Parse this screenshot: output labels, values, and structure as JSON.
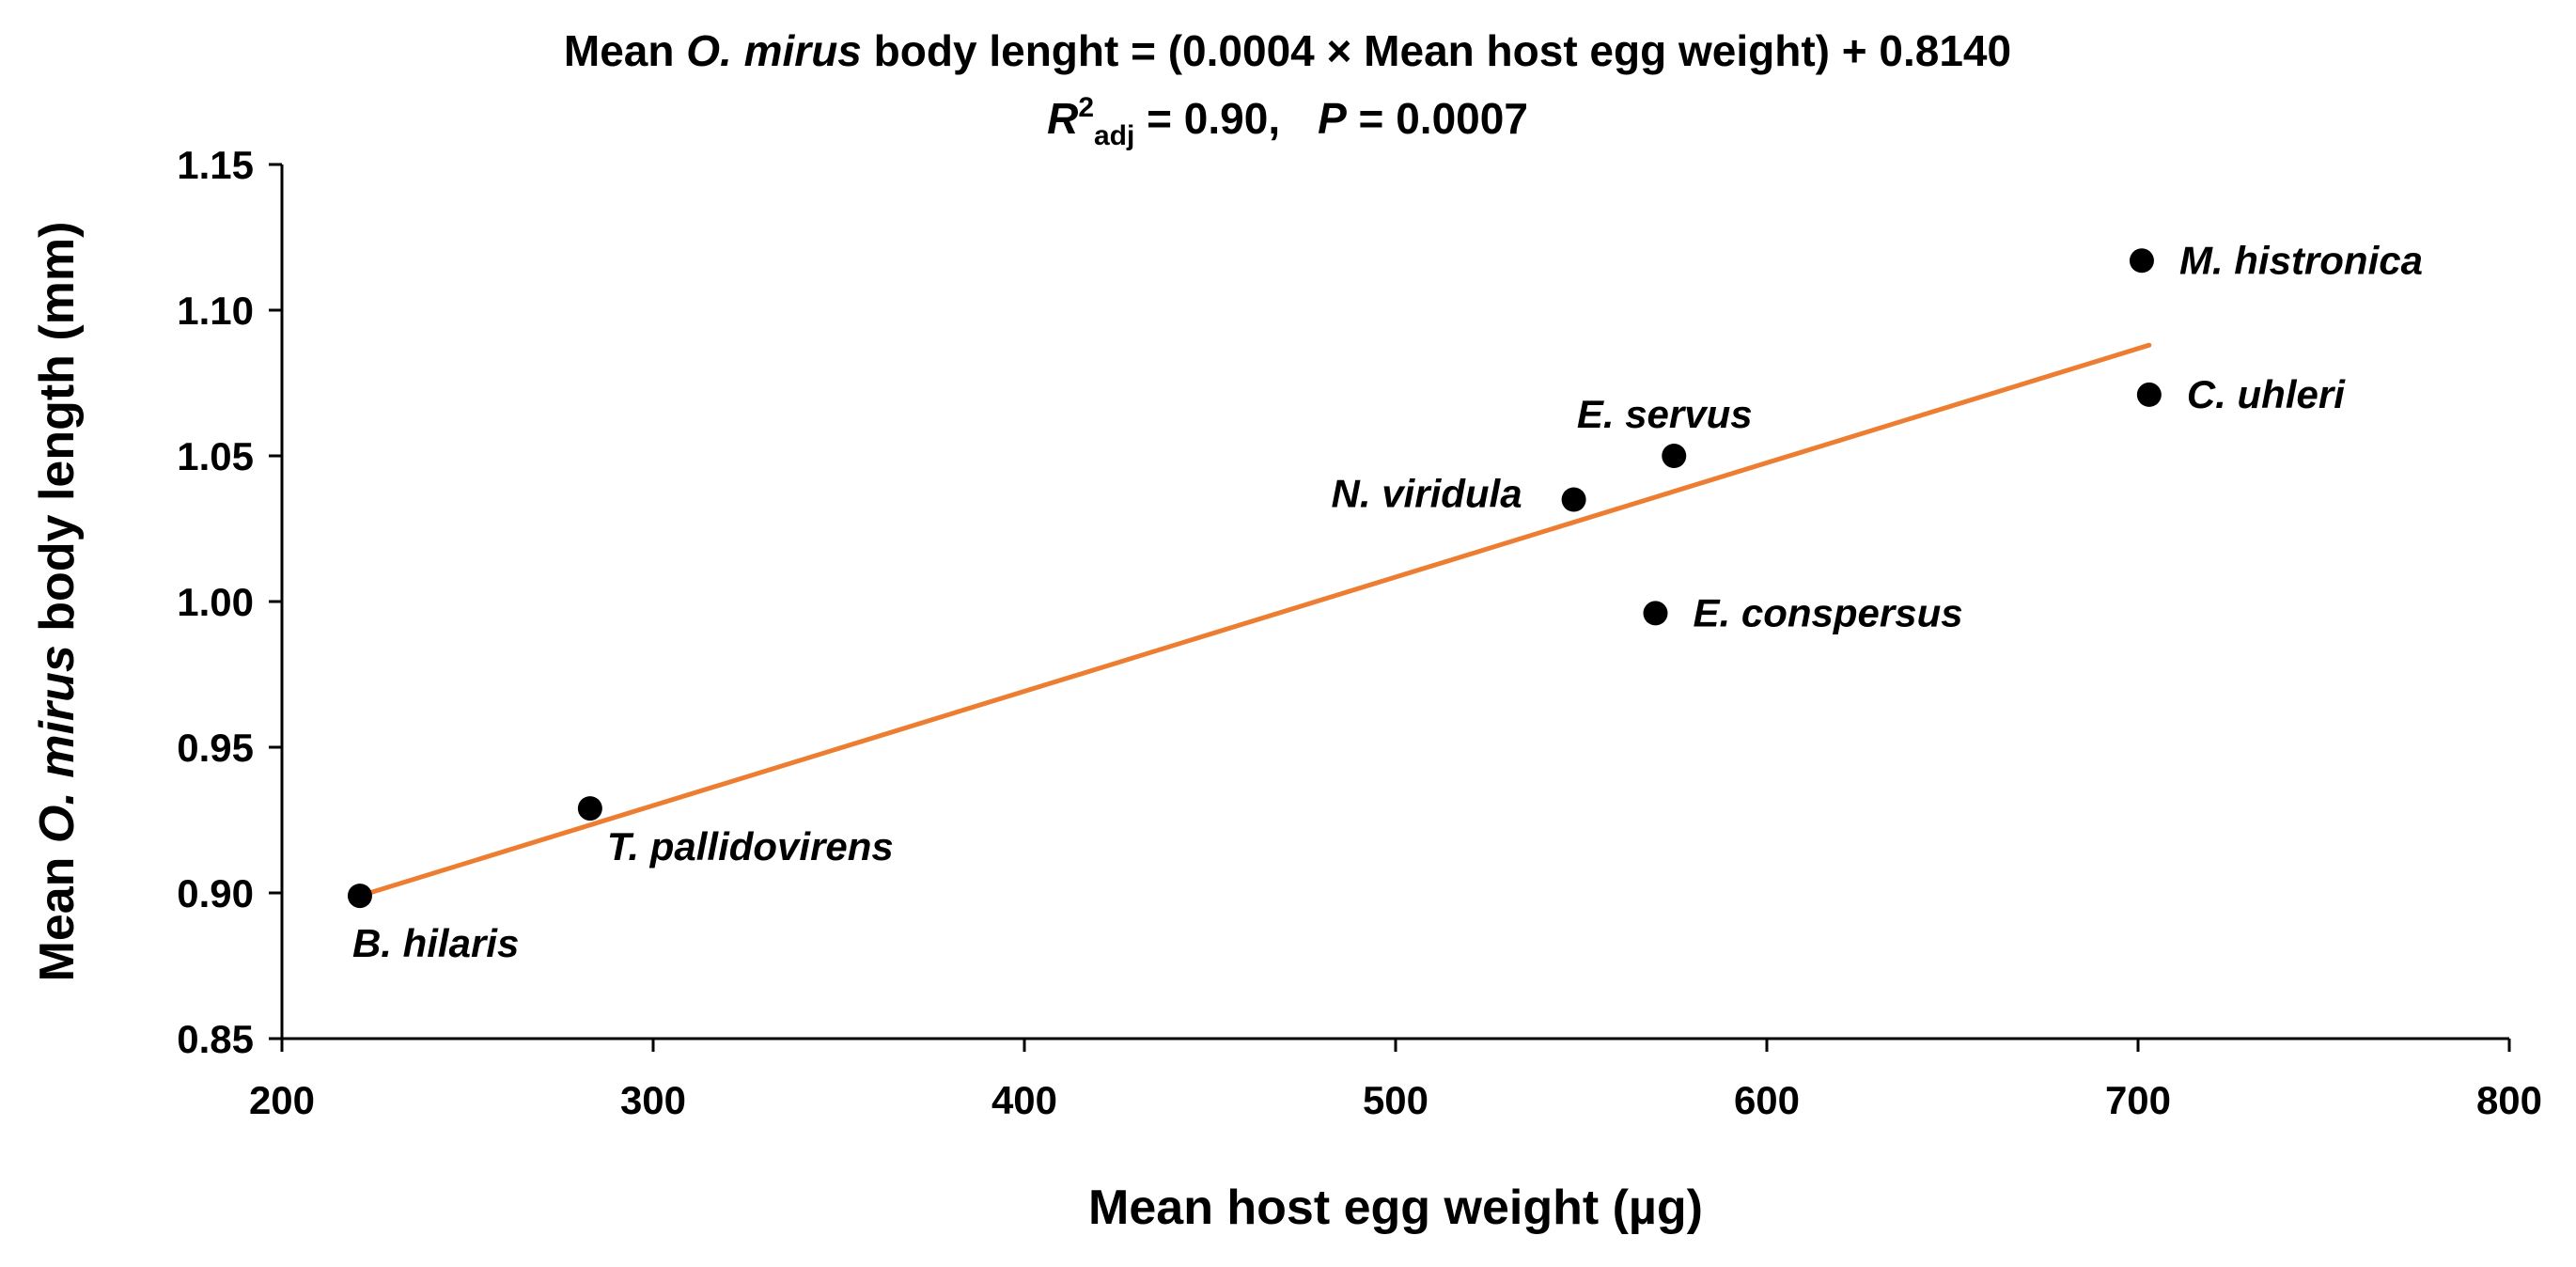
{
  "chart_data": {
    "type": "scatter",
    "title_line1_prefix": "Mean ",
    "title_line1_italic": "O. mirus",
    "title_line1_suffix": " body lenght = (0.0004 × Mean host egg weight) + 0.8140",
    "title_line2_r": "R",
    "title_line2_sup": "2",
    "title_line2_sub": "adj",
    "title_line2_value": " = 0.90,",
    "title_line2_p": "P",
    "title_line2_pvalue": " = 0.0007",
    "xlabel": "Mean host egg weight (µg)",
    "ylabel_prefix": "Mean ",
    "ylabel_italic": "O. mirus",
    "ylabel_suffix": " body length (mm)",
    "xlim": [
      200,
      800
    ],
    "ylim": [
      0.85,
      1.15
    ],
    "x_ticks": [
      "200",
      "300",
      "400",
      "500",
      "600",
      "700",
      "800"
    ],
    "y_ticks": [
      "0.85",
      "0.90",
      "0.95",
      "1.00",
      "1.05",
      "1.10",
      "1.15"
    ],
    "points": [
      {
        "label": "B. hilaris",
        "x": 221,
        "y": 0.899,
        "label_pos": "below"
      },
      {
        "label": "T. pallidovirens",
        "x": 283,
        "y": 0.929,
        "label_pos": "below-right"
      },
      {
        "label": "N. viridula",
        "x": 548,
        "y": 1.035,
        "label_pos": "left"
      },
      {
        "label": "E. servus",
        "x": 575,
        "y": 1.05,
        "label_pos": "above"
      },
      {
        "label": "E. conspersus",
        "x": 570,
        "y": 0.996,
        "label_pos": "right"
      },
      {
        "label": "M. histronica",
        "x": 701,
        "y": 1.117,
        "label_pos": "right"
      },
      {
        "label": "C. uhleri",
        "x": 703,
        "y": 1.071,
        "label_pos": "right"
      }
    ],
    "trendline": {
      "x_start": 221,
      "y_start": 0.899,
      "x_end": 703,
      "y_end": 1.088,
      "color": "#ED7D31"
    },
    "point_color": "#000000",
    "grid": false
  }
}
